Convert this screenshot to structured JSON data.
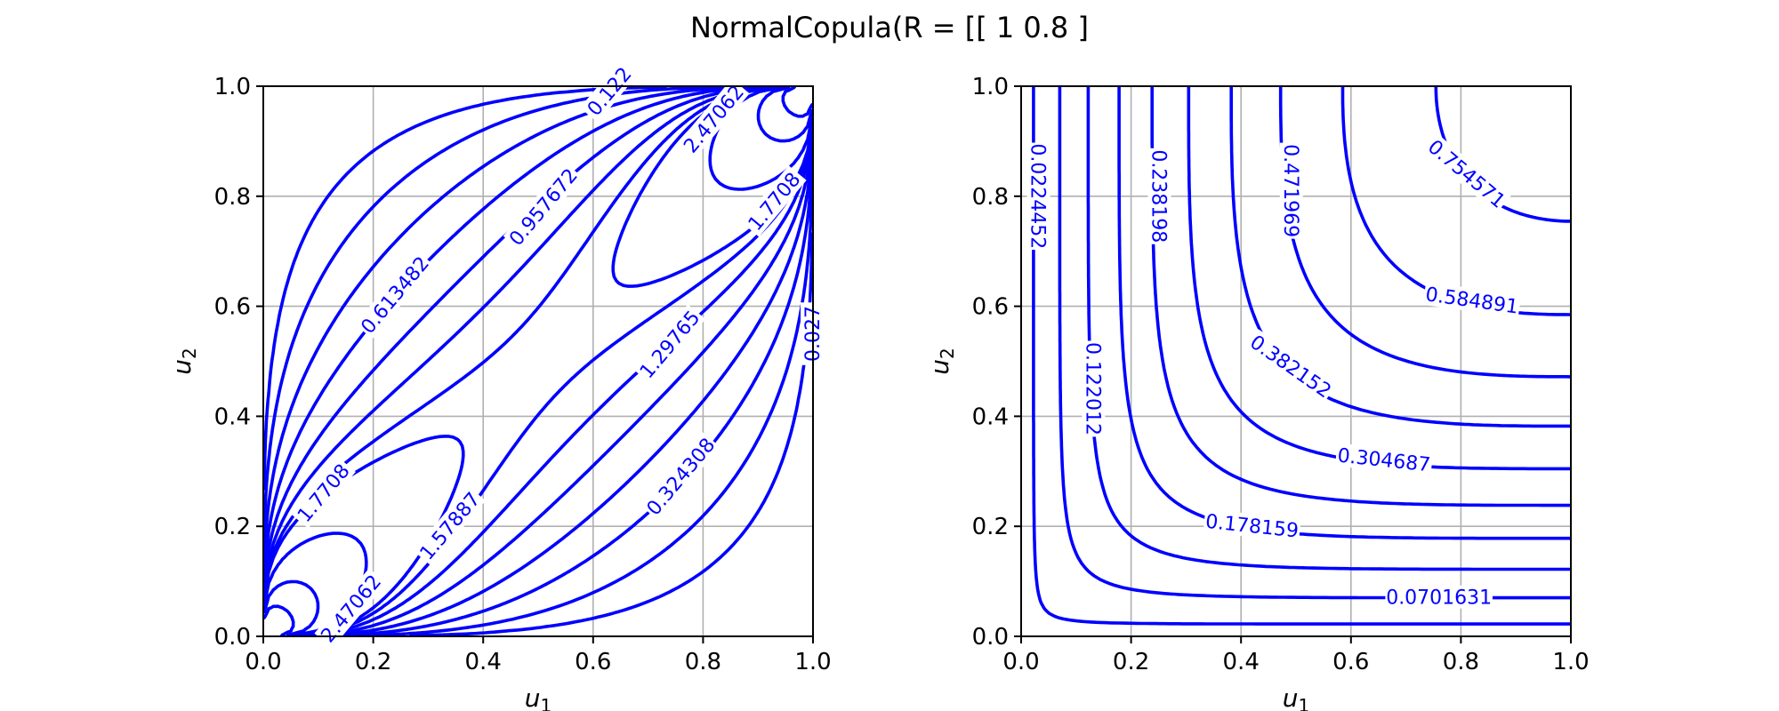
{
  "title": "NormalCopula(R = [[ 1   0.8 ]",
  "colors": {
    "contour": "#0000ff",
    "grid": "#b0b0b0",
    "axis": "#000000"
  },
  "chart_data": [
    {
      "type": "contour",
      "panel": "pdf",
      "xlabel": "u1",
      "ylabel": "u2",
      "xlim": [
        0.0,
        1.0
      ],
      "ylim": [
        0.0,
        1.0
      ],
      "xticks": [
        "0.0",
        "0.2",
        "0.4",
        "0.6",
        "0.8",
        "1.0"
      ],
      "yticks": [
        "0.0",
        "0.2",
        "0.4",
        "0.6",
        "0.8",
        "1.0"
      ],
      "grid": true,
      "correlation": 0.8,
      "levels_shown": [
        {
          "label": "0.122",
          "x": 0.63,
          "y": 0.99
        },
        {
          "label": "0.613482",
          "x": 0.24,
          "y": 0.62
        },
        {
          "label": "0.957672",
          "x": 0.51,
          "y": 0.78
        },
        {
          "label": "2.47062",
          "x": 0.82,
          "y": 0.94
        },
        {
          "label": "1.7708",
          "x": 0.93,
          "y": 0.79
        },
        {
          "label": "0.027",
          "x": 1.0,
          "y": 0.55
        },
        {
          "label": "1.29765",
          "x": 0.74,
          "y": 0.53
        },
        {
          "label": "1.7708",
          "x": 0.11,
          "y": 0.26
        },
        {
          "label": "1.57887",
          "x": 0.34,
          "y": 0.2
        },
        {
          "label": "0.324308",
          "x": 0.76,
          "y": 0.29
        },
        {
          "label": "2.47062",
          "x": 0.16,
          "y": 0.05
        }
      ]
    },
    {
      "type": "contour",
      "panel": "cdf",
      "xlabel": "u1",
      "ylabel": "u2",
      "xlim": [
        0.0,
        1.0
      ],
      "ylim": [
        0.0,
        1.0
      ],
      "xticks": [
        "0.0",
        "0.2",
        "0.4",
        "0.6",
        "0.8",
        "1.0"
      ],
      "yticks": [
        "0.0",
        "0.2",
        "0.4",
        "0.6",
        "0.8",
        "1.0"
      ],
      "grid": true,
      "correlation": 0.8,
      "levels": [
        0.0224452,
        0.0701631,
        0.122012,
        0.178159,
        0.238198,
        0.304687,
        0.382152,
        0.471969,
        0.584891,
        0.754571
      ],
      "level_labels": [
        {
          "label": "0.0224452",
          "x": 0.03,
          "y": 0.8
        },
        {
          "label": "0.0701631",
          "x": 0.76,
          "y": 0.07
        },
        {
          "label": "0.122012",
          "x": 0.13,
          "y": 0.45
        },
        {
          "label": "0.178159",
          "x": 0.42,
          "y": 0.2
        },
        {
          "label": "0.238198",
          "x": 0.25,
          "y": 0.8
        },
        {
          "label": "0.304687",
          "x": 0.66,
          "y": 0.32
        },
        {
          "label": "0.382152",
          "x": 0.49,
          "y": 0.49
        },
        {
          "label": "0.471969",
          "x": 0.49,
          "y": 0.81
        },
        {
          "label": "0.584891",
          "x": 0.82,
          "y": 0.61
        },
        {
          "label": "0.754571",
          "x": 0.81,
          "y": 0.84
        }
      ]
    }
  ]
}
